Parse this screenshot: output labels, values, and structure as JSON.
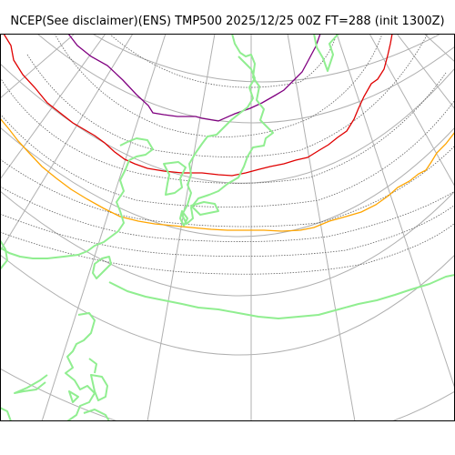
{
  "map": {
    "title": "NCEP(See disclaimer)(ENS) TMP500 2025/12/25 00Z FT=288 (init 1300Z)",
    "colors": {
      "background": "#ffffff",
      "graticule": "#b0b0b0",
      "coastline": "#90ee90",
      "contour": "#606060",
      "isotherm_purple": "#800080",
      "isotherm_red": "#e00000",
      "isotherm_orange": "#ffa500"
    },
    "highlighted_isotherms": [
      "purple",
      "red",
      "orange"
    ]
  }
}
